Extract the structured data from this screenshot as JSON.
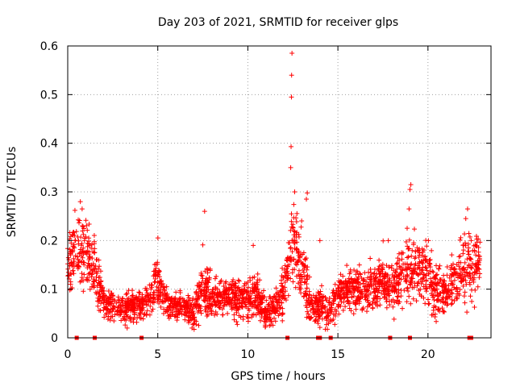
{
  "chart_data": {
    "type": "scatter",
    "title": "Day 203 of 2021, SRMTID for receiver glps",
    "xlabel": "GPS time / hours",
    "ylabel": "SRMTID / TECUs",
    "xlim": [
      0,
      23.5
    ],
    "ylim": [
      0,
      0.6
    ],
    "x_ticks": [
      "0",
      "5",
      "10",
      "15",
      "20"
    ],
    "y_ticks": [
      "0",
      "0.1",
      "0.2",
      "0.3",
      "0.4",
      "0.5",
      "0.6"
    ],
    "grid": true,
    "marker": "+",
    "color": "#ff0000",
    "gap_markers_x": [
      0.5,
      1.5,
      4.1,
      12.2,
      13.9,
      14.0,
      14.6,
      17.9,
      19.0,
      22.3,
      22.4
    ],
    "envelope": {
      "hours": [
        0.0,
        0.5,
        1.0,
        1.5,
        2.0,
        2.5,
        3.0,
        3.5,
        4.0,
        4.5,
        5.0,
        5.5,
        6.0,
        6.5,
        7.0,
        7.5,
        8.0,
        8.5,
        9.0,
        9.5,
        10.0,
        10.5,
        11.0,
        11.5,
        12.0,
        12.5,
        13.0,
        13.5,
        14.0,
        14.5,
        15.0,
        15.5,
        16.0,
        16.5,
        17.0,
        17.5,
        18.0,
        18.5,
        19.0,
        19.5,
        20.0,
        20.5,
        21.0,
        21.5,
        22.0,
        22.5,
        22.9
      ],
      "median_tecu": [
        0.15,
        0.17,
        0.18,
        0.14,
        0.07,
        0.065,
        0.06,
        0.065,
        0.065,
        0.08,
        0.11,
        0.07,
        0.06,
        0.065,
        0.05,
        0.1,
        0.08,
        0.08,
        0.085,
        0.08,
        0.075,
        0.09,
        0.05,
        0.06,
        0.085,
        0.2,
        0.15,
        0.06,
        0.07,
        0.05,
        0.08,
        0.1,
        0.1,
        0.1,
        0.1,
        0.12,
        0.1,
        0.12,
        0.14,
        0.15,
        0.12,
        0.1,
        0.09,
        0.12,
        0.15,
        0.14,
        0.17
      ],
      "spread_tecu": [
        0.05,
        0.05,
        0.05,
        0.05,
        0.02,
        0.02,
        0.02,
        0.02,
        0.02,
        0.025,
        0.035,
        0.02,
        0.02,
        0.02,
        0.02,
        0.04,
        0.03,
        0.025,
        0.025,
        0.03,
        0.025,
        0.03,
        0.02,
        0.02,
        0.03,
        0.06,
        0.05,
        0.025,
        0.03,
        0.02,
        0.03,
        0.03,
        0.03,
        0.03,
        0.03,
        0.035,
        0.035,
        0.04,
        0.05,
        0.05,
        0.04,
        0.035,
        0.03,
        0.04,
        0.05,
        0.05,
        0.03
      ]
    },
    "peak_points": [
      {
        "x": 12.45,
        "y": 0.585
      },
      {
        "x": 12.43,
        "y": 0.54
      },
      {
        "x": 12.42,
        "y": 0.495
      },
      {
        "x": 12.4,
        "y": 0.393
      },
      {
        "x": 12.38,
        "y": 0.35
      },
      {
        "x": 12.6,
        "y": 0.3
      },
      {
        "x": 13.3,
        "y": 0.298
      },
      {
        "x": 13.25,
        "y": 0.285
      },
      {
        "x": 7.6,
        "y": 0.26
      },
      {
        "x": 0.7,
        "y": 0.28
      },
      {
        "x": 0.8,
        "y": 0.265
      },
      {
        "x": 0.4,
        "y": 0.262
      },
      {
        "x": 19.05,
        "y": 0.315
      },
      {
        "x": 19.0,
        "y": 0.305
      },
      {
        "x": 18.95,
        "y": 0.265
      },
      {
        "x": 22.2,
        "y": 0.265
      },
      {
        "x": 22.1,
        "y": 0.245
      },
      {
        "x": 10.3,
        "y": 0.19
      },
      {
        "x": 14.0,
        "y": 0.2
      },
      {
        "x": 17.8,
        "y": 0.2
      },
      {
        "x": 6.9,
        "y": 0.02
      },
      {
        "x": 3.3,
        "y": 0.02
      },
      {
        "x": 11.2,
        "y": 0.025
      }
    ]
  }
}
